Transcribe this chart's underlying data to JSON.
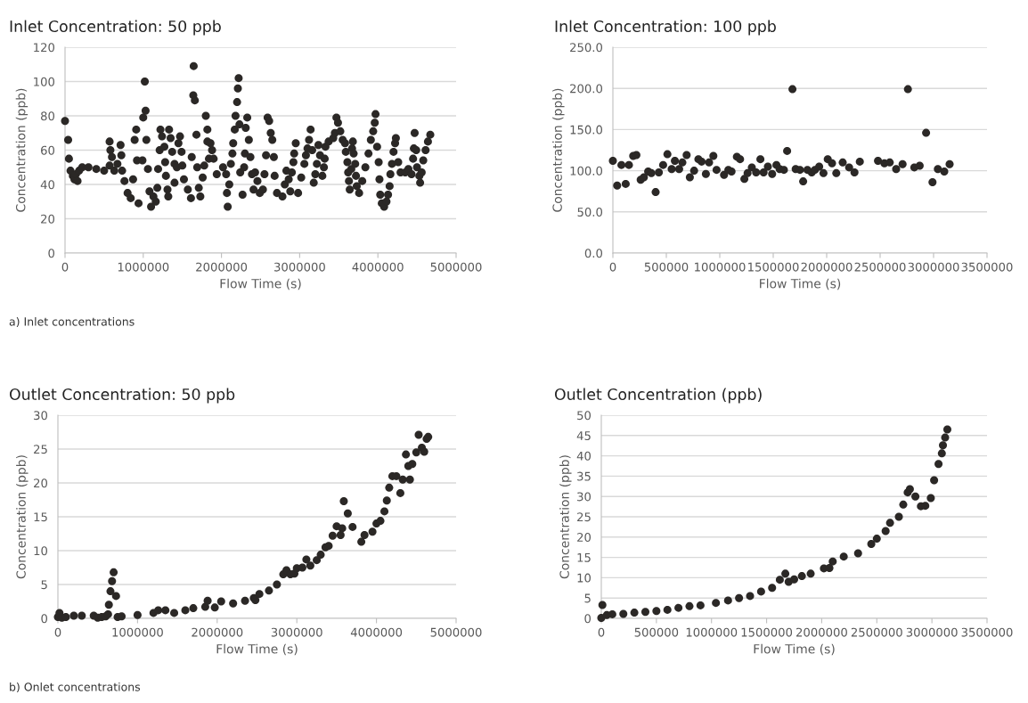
{
  "chart_data": [
    {
      "type": "scatter",
      "title": "Inlet Concentration: 50 ppb",
      "xlabel": "Flow Time (s)",
      "ylabel": "Concentration (ppb)",
      "annotations": [
        "a) Inlet concentrations"
      ],
      "marker": "circle",
      "grid": "y",
      "xlim": [
        0,
        5000000
      ],
      "xticks": [
        0,
        1000000,
        2000000,
        3000000,
        4000000,
        5000000
      ],
      "ylim": [
        0,
        120
      ],
      "yticks": [
        0,
        20,
        40,
        60,
        80,
        100,
        120
      ],
      "series": [
        {
          "color": "#2b2826",
          "x": [
            0,
            40000,
            50000,
            70000,
            100000,
            120000,
            140000,
            160000,
            180000,
            220000,
            300000,
            400000,
            500000,
            570000,
            570000,
            580000,
            600000,
            630000,
            670000,
            710000,
            720000,
            730000,
            760000,
            800000,
            840000,
            870000,
            890000,
            910000,
            920000,
            940000,
            990000,
            1000000,
            1020000,
            1030000,
            1040000,
            1060000,
            1080000,
            1100000,
            1130000,
            1160000,
            1180000,
            1190000,
            1210000,
            1220000,
            1240000,
            1270000,
            1280000,
            1290000,
            1310000,
            1320000,
            1330000,
            1350000,
            1370000,
            1400000,
            1400000,
            1430000,
            1450000,
            1470000,
            1490000,
            1500000,
            1520000,
            1570000,
            1610000,
            1620000,
            1640000,
            1645000,
            1660000,
            1680000,
            1690000,
            1710000,
            1730000,
            1760000,
            1780000,
            1800000,
            1820000,
            1820000,
            1840000,
            1860000,
            1880000,
            1900000,
            1940000,
            2020000,
            2060000,
            2070000,
            2080000,
            2100000,
            2120000,
            2140000,
            2150000,
            2170000,
            2180000,
            2200000,
            2210000,
            2220000,
            2230000,
            2240000,
            2270000,
            2290000,
            2300000,
            2310000,
            2330000,
            2350000,
            2370000,
            2390000,
            2410000,
            2430000,
            2460000,
            2490000,
            2530000,
            2550000,
            2570000,
            2590000,
            2610000,
            2630000,
            2650000,
            2670000,
            2680000,
            2710000,
            2780000,
            2810000,
            2830000,
            2860000,
            2880000,
            2900000,
            2920000,
            2930000,
            2950000,
            2980000,
            3020000,
            3060000,
            3080000,
            3100000,
            3120000,
            3140000,
            3160000,
            3180000,
            3200000,
            3220000,
            3240000,
            3260000,
            3290000,
            3310000,
            3320000,
            3330000,
            3370000,
            3430000,
            3450000,
            3470000,
            3490000,
            3520000,
            3550000,
            3580000,
            3590000,
            3610000,
            3620000,
            3630000,
            3640000,
            3660000,
            3670000,
            3680000,
            3690000,
            3710000,
            3720000,
            3730000,
            3760000,
            3800000,
            3840000,
            3880000,
            3910000,
            3940000,
            3960000,
            3970000,
            3990000,
            4010000,
            4020000,
            4030000,
            4050000,
            4080000,
            4110000,
            4130000,
            4150000,
            4160000,
            4180000,
            4200000,
            4220000,
            4230000,
            4260000,
            4290000,
            4350000,
            4390000,
            4430000,
            4450000,
            4460000,
            4470000,
            4490000,
            4500000,
            4530000,
            4540000,
            4560000,
            4580000,
            4610000,
            4640000,
            4670000
          ],
          "values": [
            77,
            66,
            55,
            48,
            45,
            43,
            46,
            42,
            48,
            50,
            50,
            49,
            48,
            51,
            65,
            60,
            56,
            48,
            52,
            63,
            57,
            48,
            42,
            35,
            32,
            43,
            66,
            72,
            54,
            29,
            54,
            79,
            100,
            83,
            66,
            49,
            36,
            27,
            33,
            30,
            38,
            49,
            60,
            72,
            68,
            62,
            53,
            45,
            37,
            33,
            72,
            67,
            59,
            52,
            41,
            50,
            64,
            68,
            59,
            51,
            43,
            37,
            32,
            56,
            92,
            109,
            89,
            69,
            50,
            38,
            33,
            44,
            51,
            80,
            72,
            65,
            55,
            64,
            60,
            55,
            46,
            50,
            46,
            35,
            27,
            40,
            52,
            58,
            64,
            72,
            80,
            88,
            96,
            102,
            75,
            47,
            34,
            50,
            58,
            73,
            79,
            66,
            56,
            46,
            37,
            47,
            42,
            35,
            37,
            46,
            57,
            79,
            77,
            70,
            66,
            56,
            45,
            35,
            33,
            40,
            48,
            43,
            36,
            47,
            53,
            58,
            64,
            35,
            44,
            52,
            57,
            61,
            66,
            72,
            60,
            41,
            46,
            52,
            63,
            57,
            45,
            50,
            55,
            62,
            65,
            67,
            70,
            79,
            76,
            71,
            66,
            64,
            59,
            53,
            47,
            42,
            37,
            49,
            61,
            65,
            58,
            52,
            45,
            39,
            35,
            42,
            50,
            58,
            66,
            71,
            76,
            81,
            62,
            53,
            43,
            34,
            29,
            27,
            30,
            34,
            39,
            46,
            52,
            59,
            64,
            67,
            53,
            47,
            47,
            49,
            46,
            55,
            61,
            70,
            60,
            50,
            45,
            41,
            47,
            54,
            60,
            65,
            69
          ]
        }
      ]
    },
    {
      "type": "scatter",
      "title": "Inlet Concentration: 100 ppb",
      "xlabel": "Flow Time (s)",
      "ylabel": "Concentration (ppb)",
      "marker": "circle",
      "grid": "y",
      "xlim": [
        0,
        3500000
      ],
      "xticks": [
        0,
        500000,
        1000000,
        1500000,
        2000000,
        2500000,
        3000000,
        3500000
      ],
      "ylim": [
        0,
        250
      ],
      "yticks": [
        {
          "value": 0,
          "label": "0.0"
        },
        {
          "value": 50,
          "label": "50.0"
        },
        {
          "value": 100,
          "label": "100.0"
        },
        {
          "value": 150,
          "label": "150.0"
        },
        {
          "value": 200,
          "label": "200.0"
        },
        {
          "value": 250,
          "label": "250.0"
        }
      ],
      "series": [
        {
          "color": "#2b2826",
          "x": [
            0,
            40000,
            80000,
            120000,
            150000,
            190000,
            220000,
            260000,
            290000,
            330000,
            360000,
            400000,
            430000,
            470000,
            510000,
            550000,
            580000,
            620000,
            650000,
            690000,
            720000,
            760000,
            800000,
            830000,
            870000,
            900000,
            940000,
            970000,
            1040000,
            1080000,
            1110000,
            1160000,
            1190000,
            1230000,
            1260000,
            1300000,
            1340000,
            1380000,
            1410000,
            1450000,
            1490000,
            1530000,
            1560000,
            1600000,
            1630000,
            1680000,
            1710000,
            1750000,
            1780000,
            1820000,
            1860000,
            1890000,
            1930000,
            1970000,
            2010000,
            2050000,
            2090000,
            2150000,
            2210000,
            2260000,
            2310000,
            2480000,
            2540000,
            2590000,
            2650000,
            2710000,
            2760000,
            2820000,
            2870000,
            2930000,
            2990000,
            3040000,
            3100000,
            3150000
          ],
          "values": [
            112,
            82,
            107,
            84,
            107,
            118,
            119,
            89,
            92,
            99,
            97,
            74,
            98,
            107,
            120,
            102,
            112,
            102,
            110,
            119,
            92,
            100,
            114,
            111,
            96,
            110,
            118,
            101,
            95,
            101,
            99,
            117,
            114,
            90,
            97,
            104,
            98,
            114,
            98,
            105,
            96,
            107,
            102,
            101,
            124,
            199,
            102,
            101,
            87,
            101,
            98,
            101,
            105,
            97,
            114,
            109,
            97,
            110,
            104,
            98,
            111,
            112,
            109,
            110,
            102,
            108,
            199,
            104,
            106,
            146,
            86,
            102,
            99,
            108
          ]
        }
      ]
    },
    {
      "type": "scatter",
      "title": "Outlet Concentration: 50 ppb",
      "xlabel": "Flow Time (s)",
      "ylabel": "Concentration (ppb)",
      "annotations": [
        "b) Onlet concentrations"
      ],
      "marker": "circle",
      "grid": "y",
      "xlim": [
        0,
        5000000
      ],
      "xticks": [
        0,
        1000000,
        2000000,
        3000000,
        4000000,
        5000000
      ],
      "ylim": [
        0,
        30
      ],
      "yticks": [
        0,
        5,
        10,
        15,
        20,
        25,
        30
      ],
      "series": [
        {
          "color": "#2b2826",
          "x": [
            0,
            20000,
            50000,
            100000,
            200000,
            300000,
            450000,
            500000,
            550000,
            600000,
            630000,
            640000,
            660000,
            680000,
            700000,
            730000,
            750000,
            800000,
            1000000,
            1200000,
            1260000,
            1350000,
            1460000,
            1600000,
            1700000,
            1850000,
            1880000,
            1970000,
            2050000,
            2200000,
            2350000,
            2460000,
            2480000,
            2530000,
            2650000,
            2750000,
            2830000,
            2870000,
            2920000,
            2970000,
            3000000,
            3070000,
            3120000,
            3170000,
            3250000,
            3300000,
            3360000,
            3400000,
            3450000,
            3500000,
            3550000,
            3570000,
            3590000,
            3640000,
            3700000,
            3810000,
            3850000,
            3950000,
            4000000,
            4050000,
            4100000,
            4130000,
            4160000,
            4200000,
            4250000,
            4300000,
            4330000,
            4370000,
            4400000,
            4420000,
            4450000,
            4500000,
            4530000,
            4570000,
            4600000,
            4630000,
            4650000
          ],
          "values": [
            0.2,
            0.8,
            0.1,
            0.2,
            0.4,
            0.4,
            0.4,
            0.1,
            0.2,
            0.3,
            0.6,
            2,
            4,
            5.5,
            6.8,
            3.3,
            0.2,
            0.3,
            0.5,
            0.8,
            1.2,
            1.2,
            0.8,
            1.2,
            1.5,
            1.7,
            2.6,
            1.6,
            2.5,
            2.2,
            2.6,
            3,
            2.7,
            3.6,
            4.1,
            5,
            6.5,
            7.1,
            6.5,
            6.6,
            7.4,
            7.5,
            8.7,
            7.8,
            8.6,
            9.4,
            10.5,
            10.7,
            12.2,
            13.6,
            12.3,
            13.3,
            17.3,
            15.5,
            13.5,
            11.3,
            12.3,
            12.8,
            14,
            14.4,
            15.8,
            17.4,
            19.3,
            21,
            21,
            18.5,
            20.5,
            24.2,
            22.5,
            20.5,
            22.8,
            24.5,
            27.1,
            25.2,
            24.6,
            26.5,
            26.8
          ]
        }
      ]
    },
    {
      "type": "scatter",
      "title": "Outlet Concentration (ppb)",
      "xlabel": "Flow Time (s)",
      "ylabel": "Concentration (ppb)",
      "marker": "circle",
      "grid": "y",
      "xlim": [
        0,
        3500000
      ],
      "xticks": [
        0,
        500000,
        1000000,
        1500000,
        2000000,
        2500000,
        3000000,
        3500000
      ],
      "ylim": [
        0,
        50
      ],
      "yticks": [
        0,
        5,
        10,
        15,
        20,
        25,
        30,
        35,
        40,
        45,
        50
      ],
      "series": [
        {
          "color": "#2b2826",
          "x": [
            0,
            10000,
            50000,
            100000,
            200000,
            300000,
            400000,
            500000,
            600000,
            700000,
            800000,
            900000,
            1040000,
            1150000,
            1250000,
            1350000,
            1450000,
            1550000,
            1620000,
            1670000,
            1700000,
            1750000,
            1820000,
            1900000,
            2020000,
            2070000,
            2100000,
            2200000,
            2330000,
            2450000,
            2500000,
            2580000,
            2620000,
            2700000,
            2740000,
            2780000,
            2800000,
            2850000,
            2900000,
            2940000,
            2990000,
            3020000,
            3060000,
            3090000,
            3100000,
            3120000,
            3140000
          ],
          "values": [
            0.1,
            3.3,
            0.8,
            1,
            1.1,
            1.4,
            1.6,
            1.8,
            2.1,
            2.6,
            3,
            3.2,
            3.8,
            4.4,
            5,
            5.5,
            6.6,
            7.5,
            9.5,
            11,
            9,
            9.6,
            10.4,
            11,
            12.3,
            12.4,
            14,
            15.2,
            16,
            18.3,
            19.6,
            21.5,
            23.5,
            25,
            28,
            31,
            31.8,
            30,
            27.6,
            27.7,
            29.6,
            34,
            38,
            40.6,
            42.6,
            44.5,
            46.5
          ]
        }
      ]
    }
  ]
}
